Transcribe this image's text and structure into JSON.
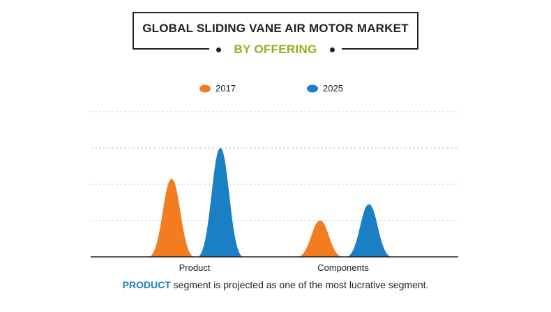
{
  "title": "GLOBAL SLIDING VANE AIR MOTOR MARKET",
  "subtitle": "BY OFFERING",
  "caption": {
    "highlight": "PRODUCT",
    "rest": " segment is projected as one of the most lucrative segment."
  },
  "colors": {
    "2017": "#f47c20",
    "2025": "#1b7fc4",
    "subtitle": "#9aab1f",
    "highlight": "#1b7fc4"
  },
  "chart_data": {
    "type": "area",
    "categories": [
      "Product",
      "Components"
    ],
    "series": [
      {
        "name": "2017",
        "values": [
          2.15,
          1.0
        ]
      },
      {
        "name": "2025",
        "values": [
          3.0,
          1.45
        ]
      }
    ],
    "ylim": [
      0,
      4
    ],
    "grid": true,
    "legend": "top-center"
  }
}
